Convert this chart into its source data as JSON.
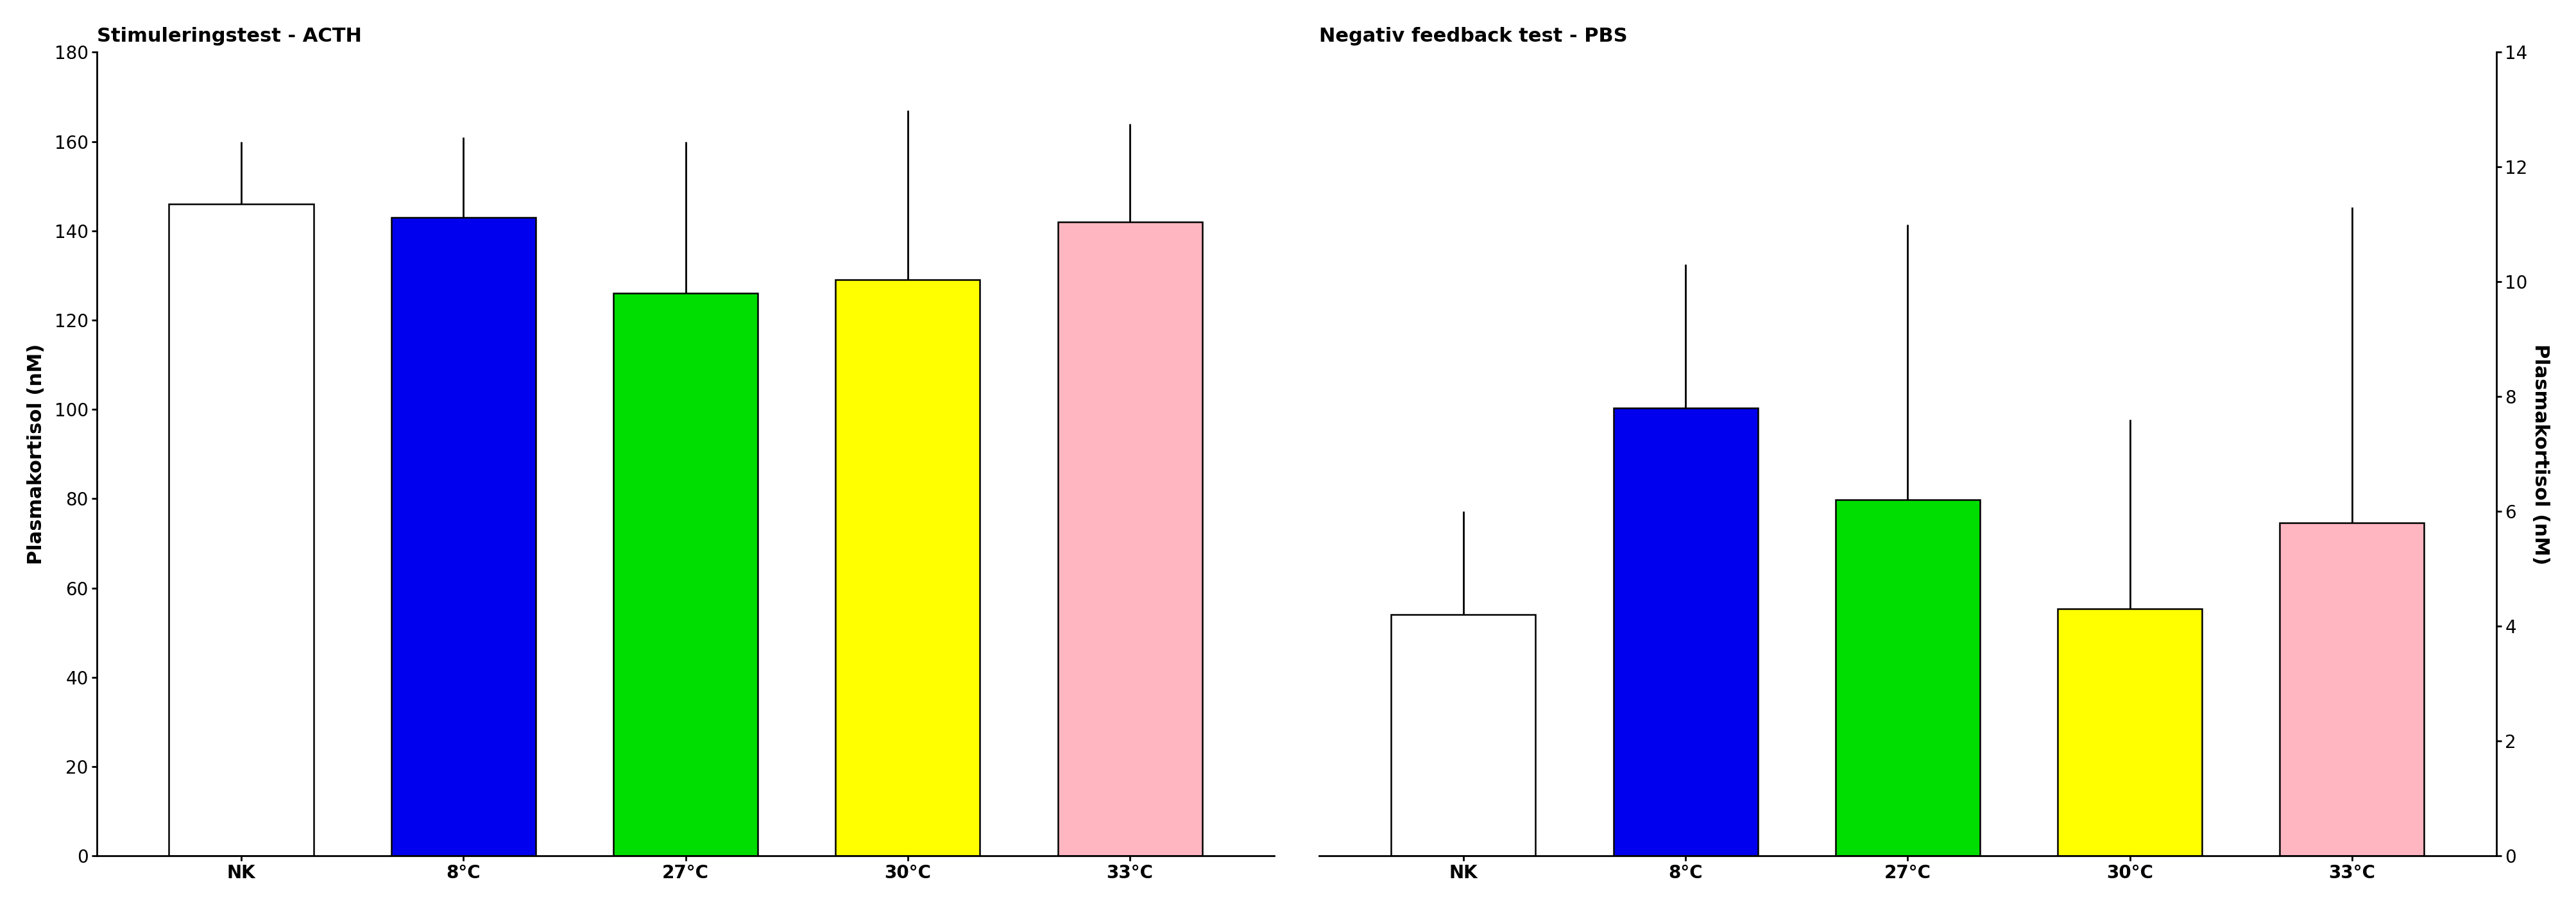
{
  "left_title": "Stimuleringstest - ACTH",
  "right_title": "Negativ feedback test - PBS",
  "categories": [
    "NK",
    "8°C",
    "27°C",
    "30°C",
    "33°C"
  ],
  "left_values": [
    146,
    143,
    126,
    129,
    142
  ],
  "left_errors_upper": [
    14,
    18,
    34,
    38,
    22
  ],
  "left_errors_lower": [
    0,
    0,
    0,
    0,
    0
  ],
  "right_values": [
    4.2,
    7.8,
    6.2,
    4.3,
    5.8
  ],
  "right_errors_upper": [
    1.8,
    2.5,
    4.8,
    3.3,
    5.5
  ],
  "right_errors_lower": [
    0,
    0,
    0,
    0,
    0
  ],
  "bar_colors": [
    "white",
    "#0000ee",
    "#00dd00",
    "#ffff00",
    "#ffb6c1"
  ],
  "bar_edgecolor": "black",
  "left_ylabel": "Plasmakortisol (nM)",
  "right_ylabel": "Plasmakortisol (nM)",
  "left_ylim": [
    0,
    180
  ],
  "right_ylim": [
    0,
    14
  ],
  "left_yticks": [
    0,
    20,
    40,
    60,
    80,
    100,
    120,
    140,
    160,
    180
  ],
  "right_yticks": [
    0,
    2,
    4,
    6,
    8,
    10,
    12,
    14
  ],
  "background_color": "white",
  "title_fontsize": 22,
  "label_fontsize": 22,
  "tick_fontsize": 20,
  "bar_width": 0.65
}
